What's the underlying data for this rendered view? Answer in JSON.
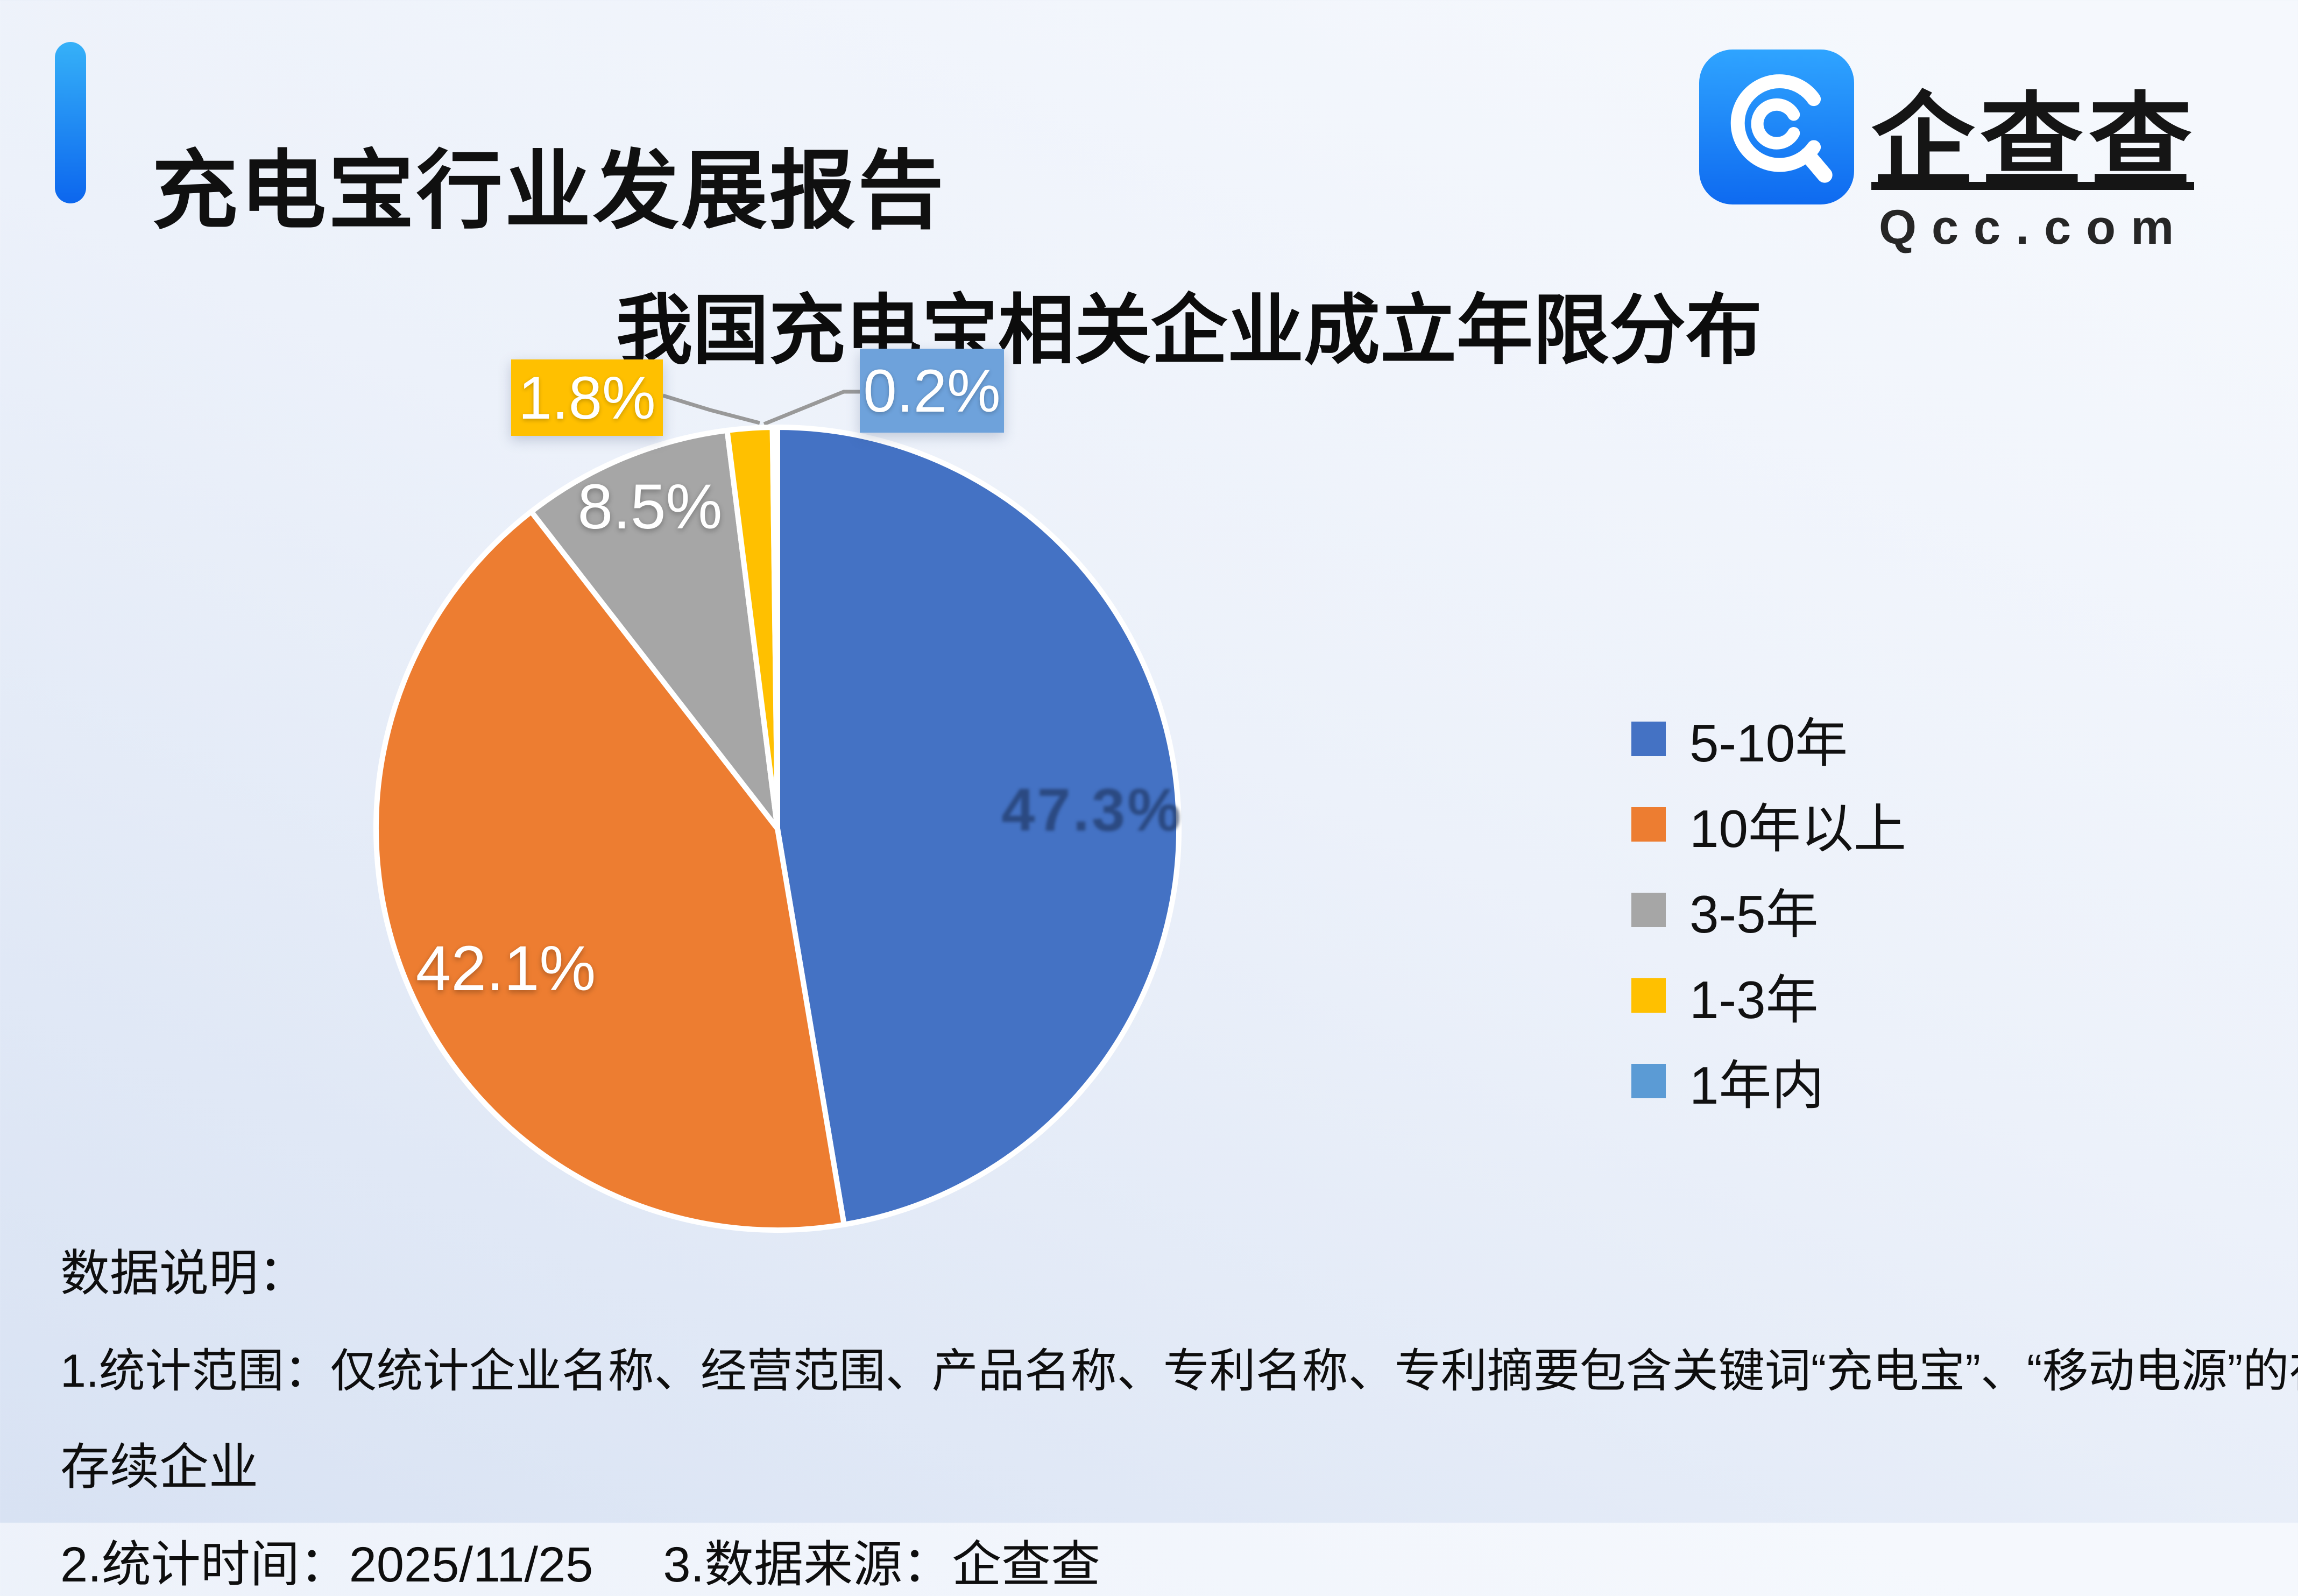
{
  "header": {
    "title": "充电宝行业发展报告",
    "accent_top": "#36B1F8",
    "accent_bottom": "#0C66EE"
  },
  "brand": {
    "name": "企查查",
    "domain": "Qcc.com",
    "icon_bg_top": "#2FA4FF",
    "icon_bg_bottom": "#0E6AF0"
  },
  "chart_data": {
    "type": "pie",
    "title": "我国充电宝相关企业成立年限分布",
    "categories": [
      "5-10年",
      "10年以上",
      "3-5年",
      "1-3年",
      "1年内"
    ],
    "values": [
      47.3,
      42.1,
      8.5,
      1.8,
      0.2
    ],
    "unit": "%",
    "labels": [
      "47.3%",
      "42.1%",
      "8.5%",
      "1.8%",
      "0.2%"
    ],
    "colors": [
      "#4472C4",
      "#ED7D31",
      "#A6A6A6",
      "#FFC000",
      "#5B9BD5"
    ],
    "callout_box_colors": {
      "label_1_3": "#FFC000",
      "label_under_1": "#6EA2DB"
    },
    "leader_line_color": "#999999",
    "legend_position": "right",
    "start_angle_deg": 0,
    "direction": "clockwise"
  },
  "footnotes": {
    "heading": "数据说明：",
    "line1": "1.统计范围：仅统计企业名称、经营范围、产品名称、专利名称、专利摘要包含关键词“充电宝”、“移动电源”的在业",
    "line2": "存续企业",
    "stat_time": "2.统计时间：2025/11/25",
    "source": "3.数据来源：企查查"
  }
}
